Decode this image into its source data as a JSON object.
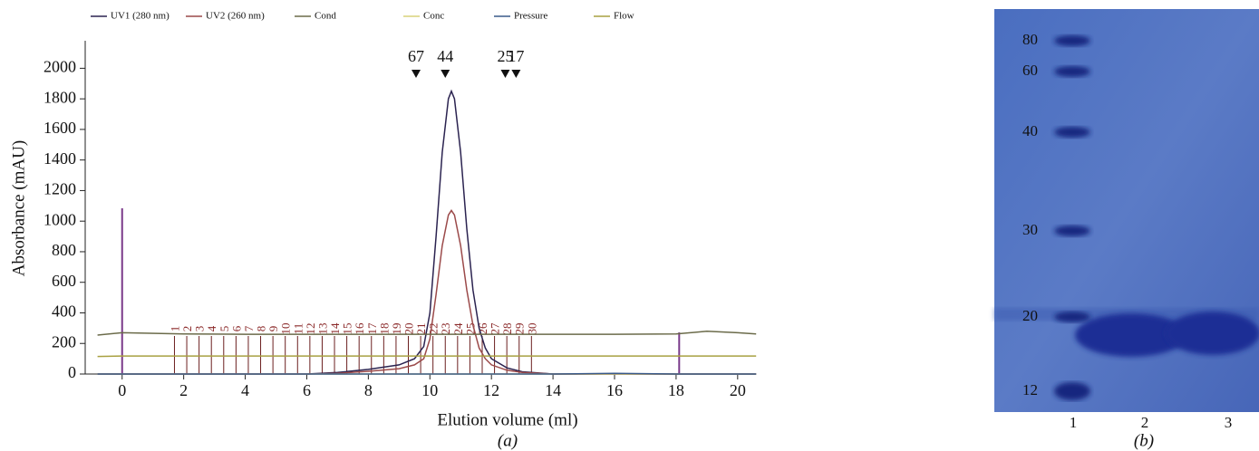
{
  "chart_data": {
    "type": "line",
    "xlabel": "Elution volume (ml)",
    "ylabel": "Absorbance (mAU)",
    "panel": "(a)",
    "xlim": [
      -1.2,
      20.3
    ],
    "ylim": [
      0,
      2180
    ],
    "xticks": [
      0,
      2,
      4,
      6,
      8,
      10,
      12,
      14,
      16,
      18,
      20
    ],
    "yticks": [
      0,
      200,
      400,
      600,
      800,
      1000,
      1200,
      1400,
      1600,
      1800,
      2000
    ],
    "x": [
      -0.8,
      0,
      2,
      4,
      6,
      7,
      8,
      9,
      9.5,
      9.8,
      10,
      10.2,
      10.4,
      10.6,
      10.7,
      10.8,
      11,
      11.2,
      11.4,
      11.6,
      11.8,
      12,
      12.5,
      13,
      14,
      16,
      18,
      19,
      20,
      20.6
    ],
    "series": [
      {
        "name": "UV1 (280 nm)",
        "color": "#2b2350",
        "values": [
          0,
          0,
          0,
          0,
          0,
          10,
          30,
          60,
          100,
          180,
          400,
          900,
          1450,
          1800,
          1850,
          1800,
          1450,
          950,
          550,
          300,
          170,
          100,
          40,
          15,
          0,
          0,
          0,
          0,
          0,
          0
        ]
      },
      {
        "name": "UV2 (260 nm)",
        "color": "#9b4a4a",
        "values": [
          0,
          0,
          0,
          0,
          0,
          5,
          18,
          35,
          60,
          100,
          230,
          520,
          840,
          1040,
          1070,
          1040,
          840,
          550,
          320,
          170,
          100,
          60,
          25,
          10,
          0,
          0,
          0,
          0,
          0,
          0
        ]
      },
      {
        "name": "Cond",
        "color": "#6b6b4a",
        "values": [
          255,
          270,
          262,
          260,
          260,
          260,
          260,
          260,
          260,
          260,
          260,
          260,
          260,
          260,
          260,
          260,
          260,
          260,
          260,
          260,
          260,
          260,
          260,
          260,
          260,
          260,
          262,
          280,
          270,
          262
        ]
      },
      {
        "name": "Conc",
        "color": "#d8d27a",
        "values": [
          0,
          0,
          0,
          0,
          0,
          0,
          0,
          0,
          0,
          0,
          0,
          0,
          0,
          0,
          0,
          0,
          0,
          0,
          0,
          0,
          0,
          0,
          0,
          0,
          0,
          0,
          0,
          0,
          0,
          0
        ]
      },
      {
        "name": "Pressure",
        "color": "#3a5a8a",
        "values": [
          0,
          0,
          0,
          0,
          0,
          0,
          0,
          0,
          0,
          0,
          0,
          0,
          0,
          0,
          0,
          0,
          0,
          0,
          0,
          0,
          0,
          0,
          0,
          0,
          0,
          5,
          0,
          0,
          0,
          0
        ]
      },
      {
        "name": "Flow",
        "color": "#a8a040",
        "values": [
          115,
          118,
          118,
          118,
          118,
          118,
          118,
          118,
          118,
          118,
          118,
          118,
          118,
          118,
          118,
          118,
          118,
          118,
          118,
          118,
          118,
          118,
          118,
          118,
          118,
          118,
          118,
          118,
          118,
          118
        ]
      }
    ],
    "standards": {
      "x": [
        9.55,
        10.5,
        12.45,
        12.8
      ],
      "labels": [
        "67",
        "44",
        "25",
        "17"
      ]
    },
    "fractions": {
      "x": [
        1.7,
        2.1,
        2.5,
        2.9,
        3.3,
        3.7,
        4.1,
        4.5,
        4.9,
        5.3,
        5.7,
        6.1,
        6.5,
        6.9,
        7.3,
        7.7,
        8.1,
        8.5,
        8.9,
        9.3,
        9.7,
        10.1,
        10.5,
        10.9,
        11.3,
        11.7,
        12.1,
        12.5,
        12.9,
        13.3
      ],
      "labels": [
        1,
        2,
        3,
        4,
        5,
        6,
        7,
        8,
        9,
        10,
        11,
        12,
        13,
        14,
        15,
        16,
        17,
        18,
        19,
        20,
        21,
        22,
        23,
        24,
        25,
        26,
        27,
        28,
        29,
        30
      ]
    },
    "injections": [
      0,
      18.1
    ]
  },
  "gel": {
    "markers": [
      "80",
      "60",
      "40",
      "30",
      "20",
      "12"
    ],
    "lanes": [
      "1",
      "2",
      "3"
    ],
    "panel": "(b)"
  }
}
